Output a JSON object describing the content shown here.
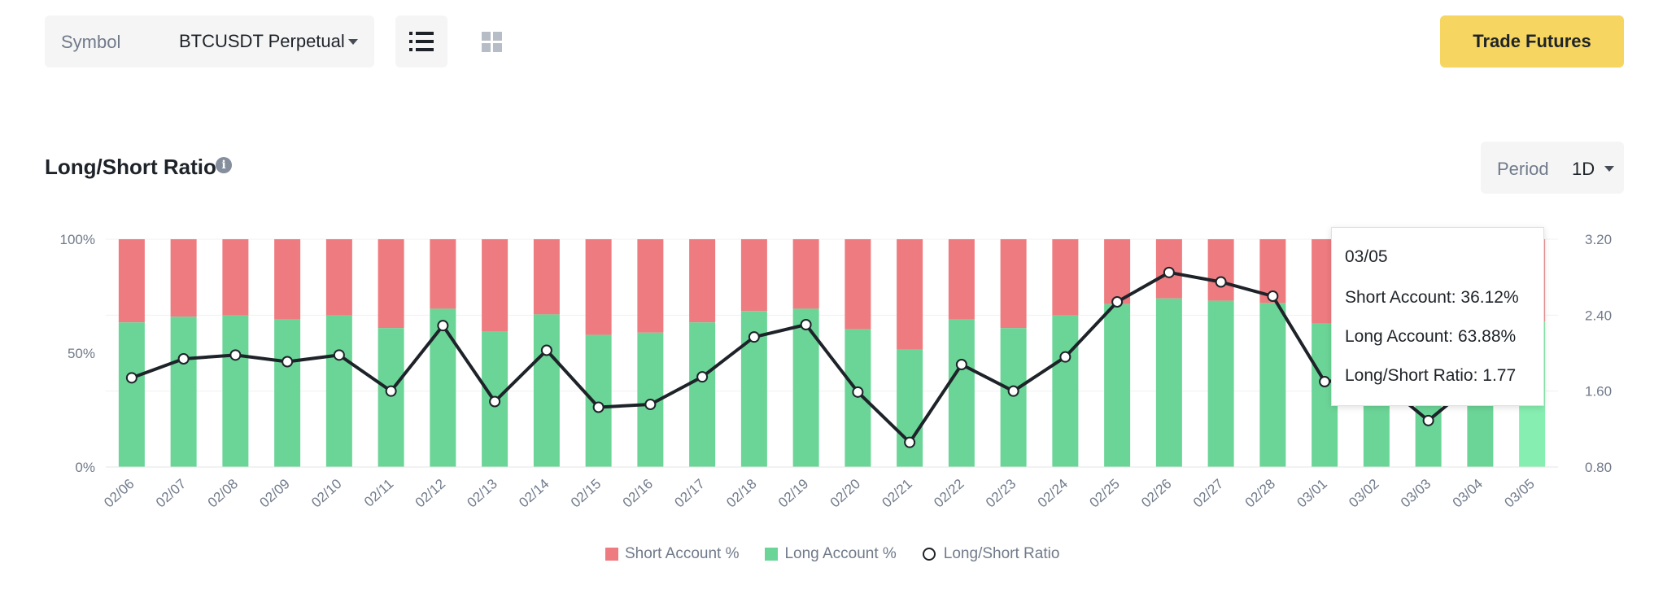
{
  "toolbar": {
    "symbol_label": "Symbol",
    "symbol_value": "BTCUSDT Perpetual",
    "trade_button": "Trade Futures"
  },
  "section": {
    "title": "Long/Short Ratio",
    "info_icon_glyph": "i",
    "period_label": "Period",
    "period_value": "1D"
  },
  "legend": {
    "short": "Short Account %",
    "long": "Long Account %",
    "ratio": "Long/Short Ratio"
  },
  "tooltip": {
    "date": "03/05",
    "short": "Short Account: 36.12%",
    "long": "Long Account: 63.88%",
    "ratio": "Long/Short Ratio: 1.77"
  },
  "colors": {
    "short": "#ee7b7f",
    "long": "#6bd597",
    "long_highlight": "#86eeb0",
    "short_highlight": "#f29599",
    "line": "#1e2329",
    "accent": "#f6d660"
  },
  "chart_data": {
    "type": "bar",
    "stacked": true,
    "categories": [
      "02/06",
      "02/07",
      "02/08",
      "02/09",
      "02/10",
      "02/11",
      "02/12",
      "02/13",
      "02/14",
      "02/15",
      "02/16",
      "02/17",
      "02/18",
      "02/19",
      "02/20",
      "02/21",
      "02/22",
      "02/23",
      "02/24",
      "02/25",
      "02/26",
      "02/27",
      "02/28",
      "03/01",
      "03/02",
      "03/03",
      "03/04",
      "03/05"
    ],
    "series": [
      {
        "name": "Long Account %",
        "axis": "left",
        "values": [
          63.5,
          66.0,
          66.5,
          65.0,
          66.5,
          61.0,
          69.5,
          59.5,
          67.0,
          58.0,
          59.0,
          63.5,
          68.5,
          69.5,
          60.5,
          51.5,
          65.0,
          61.0,
          66.5,
          71.5,
          74.0,
          73.0,
          72.0,
          63.0,
          63.5,
          56.5,
          63.5,
          63.88
        ]
      },
      {
        "name": "Short Account %",
        "axis": "left",
        "values": [
          36.5,
          34.0,
          33.5,
          35.0,
          33.5,
          39.0,
          30.5,
          40.5,
          33.0,
          42.0,
          41.0,
          36.5,
          31.5,
          30.5,
          39.5,
          48.5,
          35.0,
          39.0,
          33.5,
          28.5,
          26.0,
          27.0,
          28.0,
          37.0,
          36.5,
          43.5,
          36.5,
          36.12
        ]
      },
      {
        "name": "Long/Short Ratio",
        "type": "line",
        "axis": "right",
        "values": [
          1.74,
          1.94,
          1.98,
          1.91,
          1.98,
          1.6,
          2.29,
          1.49,
          2.03,
          1.43,
          1.46,
          1.75,
          2.17,
          2.3,
          1.59,
          1.06,
          1.88,
          1.6,
          1.96,
          2.54,
          2.85,
          2.75,
          2.6,
          1.7,
          1.74,
          1.29,
          1.74,
          1.77
        ]
      }
    ],
    "y_left": {
      "ticks": [
        "0%",
        "50%",
        "100%"
      ],
      "ylim": [
        0,
        100
      ]
    },
    "y_right": {
      "ticks": [
        "0.80",
        "1.60",
        "2.40",
        "3.20"
      ],
      "ylim": [
        0.8,
        3.2
      ]
    },
    "highlighted_category": "03/05",
    "legend_position": "bottom-center",
    "grid": true
  }
}
